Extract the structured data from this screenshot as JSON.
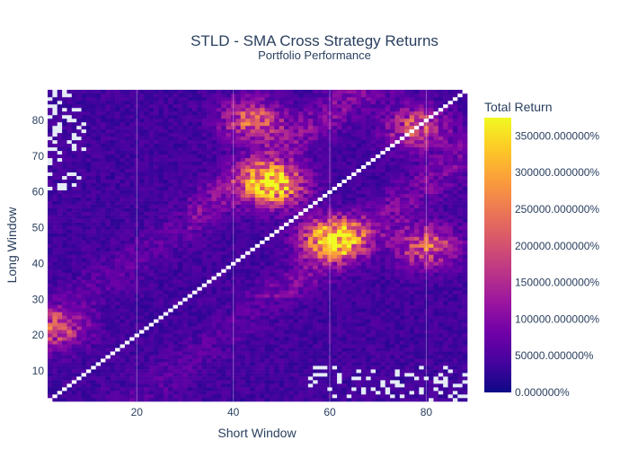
{
  "chart_data": {
    "type": "heatmap",
    "title": "STLD - SMA Cross Strategy Returns",
    "subtitle": "Portfolio Performance",
    "xlabel": "Short Window",
    "ylabel": "Long Window",
    "xlim": [
      1.5,
      88.5
    ],
    "ylim": [
      1.5,
      88.5
    ],
    "x_ticks": [
      20,
      40,
      60,
      80
    ],
    "y_ticks": [
      10,
      20,
      30,
      40,
      50,
      60,
      70,
      80
    ],
    "grid": true,
    "colorscale": [
      "#0d0887",
      "#46039f",
      "#7201a8",
      "#9c179e",
      "#bd3786",
      "#d8576b",
      "#ed7953",
      "#fb9f3a",
      "#fdca26",
      "#f0f921"
    ],
    "colorbar": {
      "title": "Total Return",
      "range": [
        0,
        375000
      ],
      "ticks": [
        0,
        50000,
        100000,
        150000,
        200000,
        250000,
        300000,
        350000
      ],
      "tick_labels": [
        "0.000000%",
        "50000.000000%",
        "100000.000000%",
        "150000.000000%",
        "200000.000000%",
        "250000.000000%",
        "300000.000000%",
        "350000.000000%"
      ]
    },
    "window_range": [
      2,
      88
    ],
    "diagonal_value": 0,
    "hotspots": [
      {
        "short": 48,
        "long": 62,
        "value": 330000
      },
      {
        "short": 61,
        "long": 47,
        "value": 325000
      },
      {
        "short": 44,
        "long": 80,
        "value": 180000
      },
      {
        "short": 80,
        "long": 45,
        "value": 175000
      },
      {
        "short": 78,
        "long": 78,
        "value": 160000
      },
      {
        "short": 3,
        "long": 22,
        "value": 150000
      }
    ],
    "background_value": 40000
  },
  "colors": {
    "plot_background": "#e5ecf6",
    "gap": "#ffffff",
    "text": "#2a3f5f"
  }
}
